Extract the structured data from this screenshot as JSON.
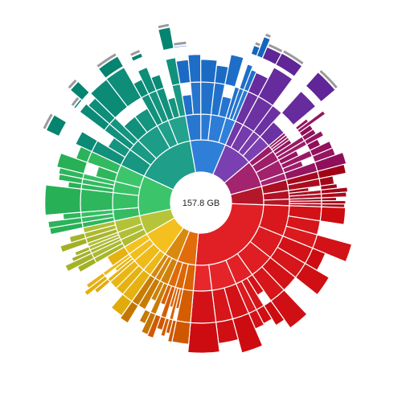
{
  "center": {
    "total_size": "157.8 GB"
  },
  "palette": {
    "teal": "#1f9e8a",
    "blue": "#2f7fd9",
    "purple": "#7a3fb0",
    "magenta": "#a3236e",
    "crimson": "#b5172a",
    "red": "#e02024",
    "orange": "#e26b0a",
    "amber": "#d88a10",
    "yellow": "#f4c01f",
    "lime": "#b6c43a",
    "green": "#3cc46b"
  },
  "folders": [
    {
      "name": "teal",
      "sub": [
        3,
        2,
        4,
        2,
        3
      ],
      "cap": true
    },
    {
      "name": "blue",
      "sub": [
        3,
        2,
        3,
        2
      ],
      "cap": true
    },
    {
      "name": "purple",
      "sub": [
        2,
        3,
        2,
        3
      ],
      "cap": true
    },
    {
      "name": "magenta",
      "sub": [
        2,
        3,
        4,
        2
      ],
      "cap": false
    },
    {
      "name": "crimson",
      "sub": [
        5,
        4,
        3
      ],
      "cap": false
    },
    {
      "name": "red",
      "sub": [
        5,
        4,
        4,
        3,
        4,
        3
      ],
      "cap": false
    },
    {
      "name": "orange",
      "sub": [
        4,
        3,
        3
      ],
      "cap": false
    },
    {
      "name": "amber",
      "sub": [
        3,
        2,
        2
      ],
      "cap": false
    },
    {
      "name": "yellow",
      "sub": [
        2,
        3,
        2,
        2
      ],
      "cap": false
    },
    {
      "name": "lime",
      "sub": [
        2,
        2,
        3
      ],
      "cap": false
    },
    {
      "name": "green",
      "sub": [
        2,
        3,
        2,
        3
      ],
      "cap": false
    }
  ]
}
